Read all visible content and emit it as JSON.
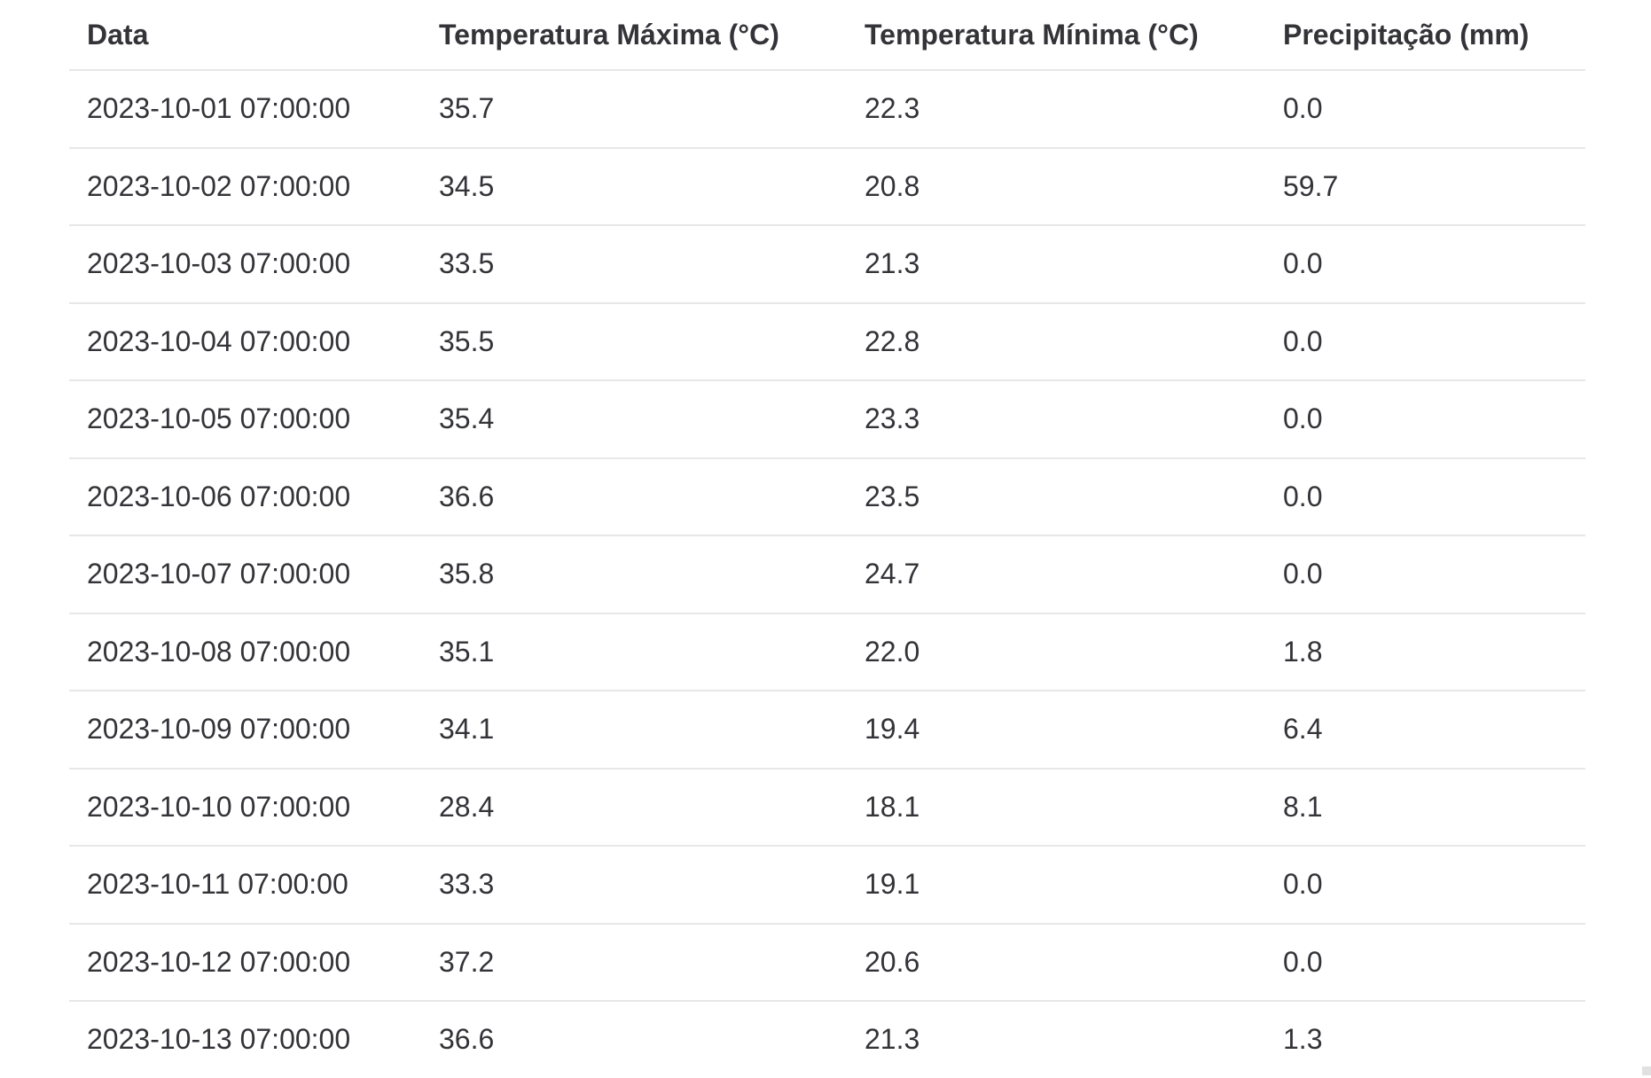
{
  "table": {
    "columns": [
      "Data",
      "Temperatura Máxima (°C)",
      "Temperatura Mínima (°C)",
      "Precipitação (mm)"
    ],
    "rows": [
      [
        "2023-10-01 07:00:00",
        "35.7",
        "22.3",
        "0.0"
      ],
      [
        "2023-10-02 07:00:00",
        "34.5",
        "20.8",
        "59.7"
      ],
      [
        "2023-10-03 07:00:00",
        "33.5",
        "21.3",
        "0.0"
      ],
      [
        "2023-10-04 07:00:00",
        "35.5",
        "22.8",
        "0.0"
      ],
      [
        "2023-10-05 07:00:00",
        "35.4",
        "23.3",
        "0.0"
      ],
      [
        "2023-10-06 07:00:00",
        "36.6",
        "23.5",
        "0.0"
      ],
      [
        "2023-10-07 07:00:00",
        "35.8",
        "24.7",
        "0.0"
      ],
      [
        "2023-10-08 07:00:00",
        "35.1",
        "22.0",
        "1.8"
      ],
      [
        "2023-10-09 07:00:00",
        "34.1",
        "19.4",
        "6.4"
      ],
      [
        "2023-10-10 07:00:00",
        "28.4",
        "18.1",
        "8.1"
      ],
      [
        "2023-10-11 07:00:00",
        "33.3",
        "19.1",
        "0.0"
      ],
      [
        "2023-10-12 07:00:00",
        "37.2",
        "20.6",
        "0.0"
      ],
      [
        "2023-10-13 07:00:00",
        "36.6",
        "21.3",
        "1.3"
      ]
    ]
  },
  "colors": {
    "text": "#333338",
    "divider": "#e7e7e8",
    "background": "#ffffff",
    "scrollbar_corner": "#e1e1e1"
  }
}
